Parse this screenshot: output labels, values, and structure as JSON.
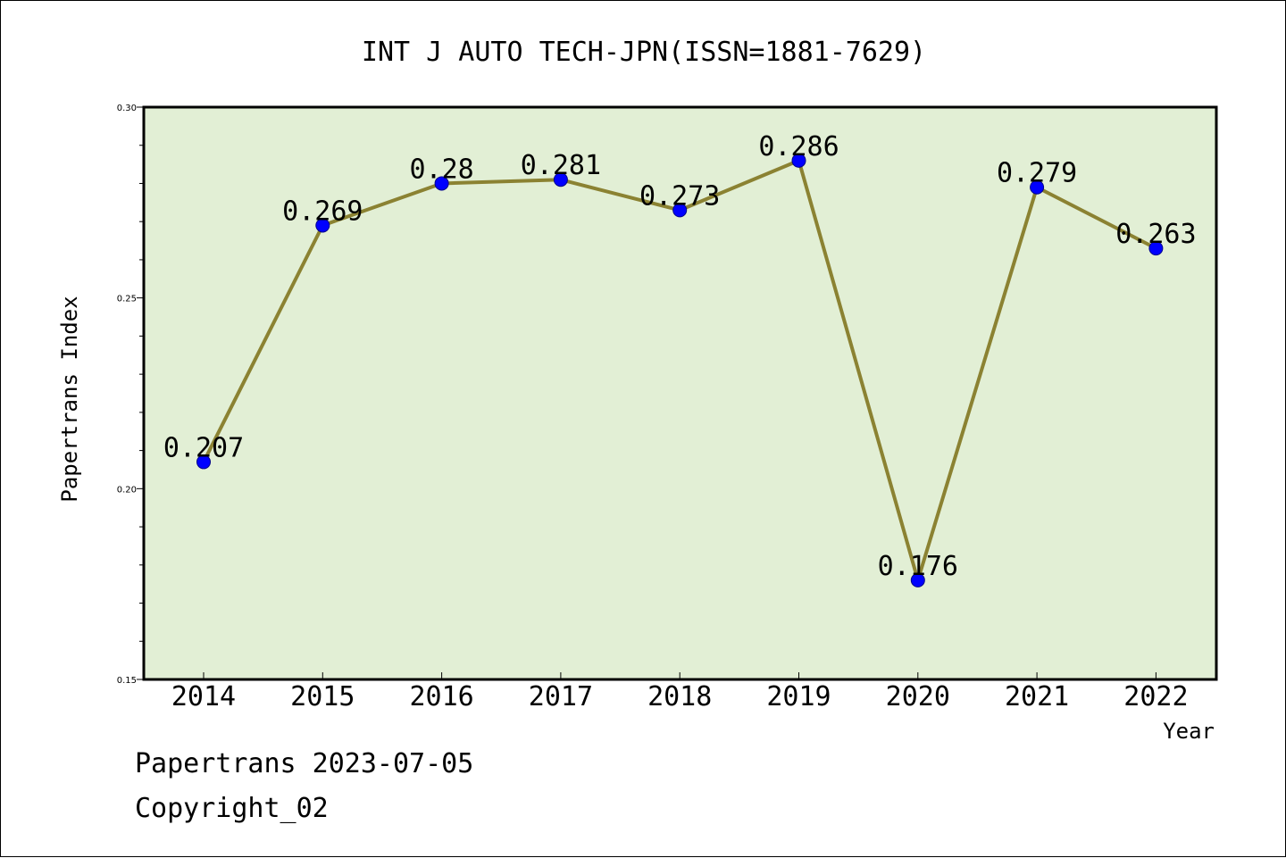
{
  "chart_data": {
    "type": "line",
    "title": "INT J AUTO TECH-JPN(ISSN=1881-7629)",
    "xlabel": "Year",
    "ylabel": "Papertrans Index",
    "categories": [
      "2014",
      "2015",
      "2016",
      "2017",
      "2018",
      "2019",
      "2020",
      "2021",
      "2022"
    ],
    "series": [
      {
        "values": [
          0.207,
          0.269,
          0.28,
          0.281,
          0.273,
          0.286,
          0.176,
          0.279,
          0.263
        ],
        "labels": [
          "0.207",
          "0.269",
          "0.28",
          "0.281",
          "0.273",
          "0.286",
          "0.176",
          "0.279",
          "0.263"
        ]
      }
    ],
    "ylim": [
      0.15,
      0.3
    ],
    "yticks": [
      "0.15",
      "0.20",
      "0.25",
      "0.30"
    ],
    "grid": false,
    "colors": {
      "plot_background": "#e2efd5",
      "line": "#8b8232",
      "marker": "#0000ff"
    }
  },
  "footer": {
    "line1": "Papertrans 2023-07-05",
    "line2": "Copyright_02"
  }
}
